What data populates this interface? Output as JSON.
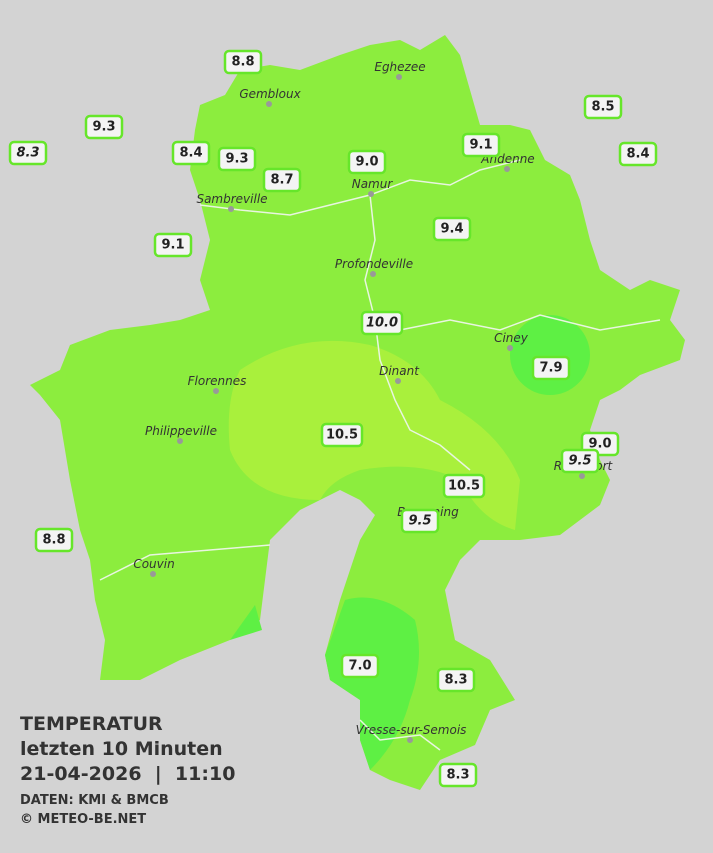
{
  "legend": {
    "title": "TEMPERATUR",
    "subtitle": "letzten 10 Minuten",
    "datetime": "21-04-2026  |  11:10",
    "source": "DATEN: KMI & BMCB",
    "copyright": "© METEO-BE.NET"
  },
  "cities": [
    {
      "name": "Eghezee"
    },
    {
      "name": "Gembloux"
    },
    {
      "name": "Andenne"
    },
    {
      "name": "Namur"
    },
    {
      "name": "Sambreville"
    },
    {
      "name": "Profondeville"
    },
    {
      "name": "Ciney"
    },
    {
      "name": "Dinant"
    },
    {
      "name": "Florennes"
    },
    {
      "name": "Philippeville"
    },
    {
      "name": "Rochefort"
    },
    {
      "name": "Beauraing"
    },
    {
      "name": "Couvin"
    },
    {
      "name": "Vresse-sur-Semois"
    }
  ],
  "stations": [
    {
      "label": "8.8"
    },
    {
      "label": "9.3"
    },
    {
      "label": "8.3",
      "italic": true
    },
    {
      "label": "8.4"
    },
    {
      "label": "9.3"
    },
    {
      "label": "8.7"
    },
    {
      "label": "9.0"
    },
    {
      "label": "9.1"
    },
    {
      "label": "8.5"
    },
    {
      "label": "8.4"
    },
    {
      "label": "9.4"
    },
    {
      "label": "9.1"
    },
    {
      "label": "10.0",
      "italic": true
    },
    {
      "label": "7.9"
    },
    {
      "label": "10.5"
    },
    {
      "label": "9.0"
    },
    {
      "label": "9.5",
      "italic": true
    },
    {
      "label": "10.5"
    },
    {
      "label": "9.5",
      "italic": true
    },
    {
      "label": "8.8"
    },
    {
      "label": "7.0"
    },
    {
      "label": "8.3"
    },
    {
      "label": "8.3"
    }
  ]
}
